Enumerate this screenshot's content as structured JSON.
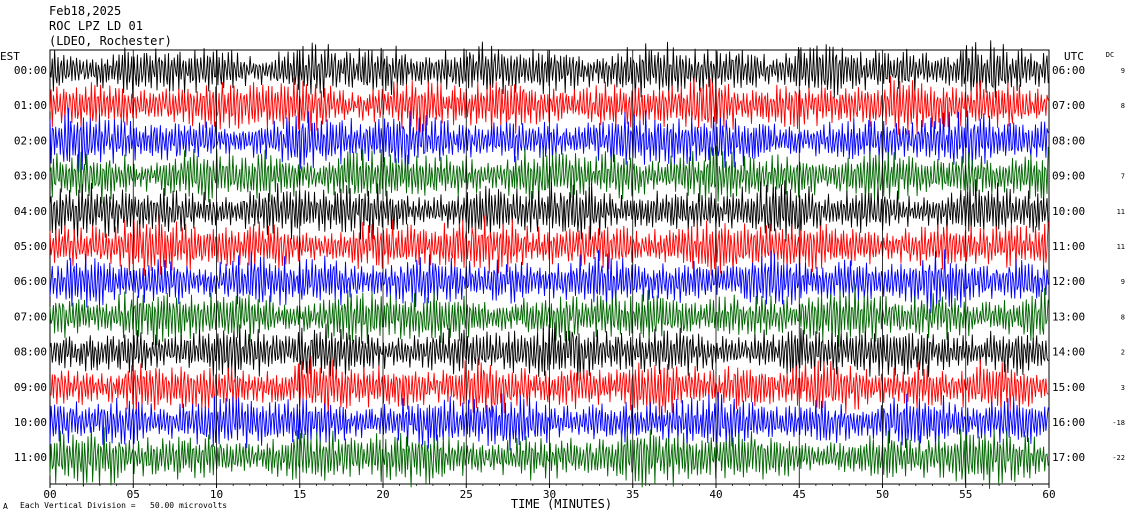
{
  "header": {
    "date": "Feb18,2025",
    "station": "ROC LPZ LD 01",
    "network": "(LDEO, Rochester)"
  },
  "left_zone_label": "EST",
  "right_zone_label": "UTC",
  "dc_label": "DC",
  "footer": {
    "scale_note": "Each Vertical Division =   50.00 microvolts",
    "corner_mark": "A"
  },
  "chart_data": {
    "type": "line",
    "title": "Feb18,2025",
    "xlabel": "TIME (MINUTES)",
    "ylabel": "",
    "xlim": [
      0,
      60
    ],
    "x_ticks": [
      "00",
      "05",
      "10",
      "15",
      "20",
      "25",
      "30",
      "35",
      "40",
      "45",
      "50",
      "55",
      "60"
    ],
    "trace_colors": [
      "#000000",
      "#ff0000",
      "#0000ff",
      "#006600"
    ],
    "rows": [
      {
        "est": "00:00",
        "utc": "06:00",
        "dc": "9",
        "color": "#000000"
      },
      {
        "est": "01:00",
        "utc": "07:00",
        "dc": "8",
        "color": "#ff0000"
      },
      {
        "est": "02:00",
        "utc": "08:00",
        "dc": "",
        "color": "#0000ff"
      },
      {
        "est": "03:00",
        "utc": "09:00",
        "dc": "7",
        "color": "#006600"
      },
      {
        "est": "04:00",
        "utc": "10:00",
        "dc": "11",
        "color": "#000000"
      },
      {
        "est": "05:00",
        "utc": "11:00",
        "dc": "11",
        "color": "#ff0000"
      },
      {
        "est": "06:00",
        "utc": "12:00",
        "dc": "9",
        "color": "#0000ff"
      },
      {
        "est": "07:00",
        "utc": "13:00",
        "dc": "8",
        "color": "#006600"
      },
      {
        "est": "08:00",
        "utc": "14:00",
        "dc": "2",
        "color": "#000000"
      },
      {
        "est": "09:00",
        "utc": "15:00",
        "dc": "3",
        "color": "#ff0000"
      },
      {
        "est": "10:00",
        "utc": "16:00",
        "dc": "-18",
        "color": "#0000ff"
      },
      {
        "est": "11:00",
        "utc": "17:00",
        "dc": "-22",
        "color": "#006600"
      }
    ],
    "grid": true
  }
}
